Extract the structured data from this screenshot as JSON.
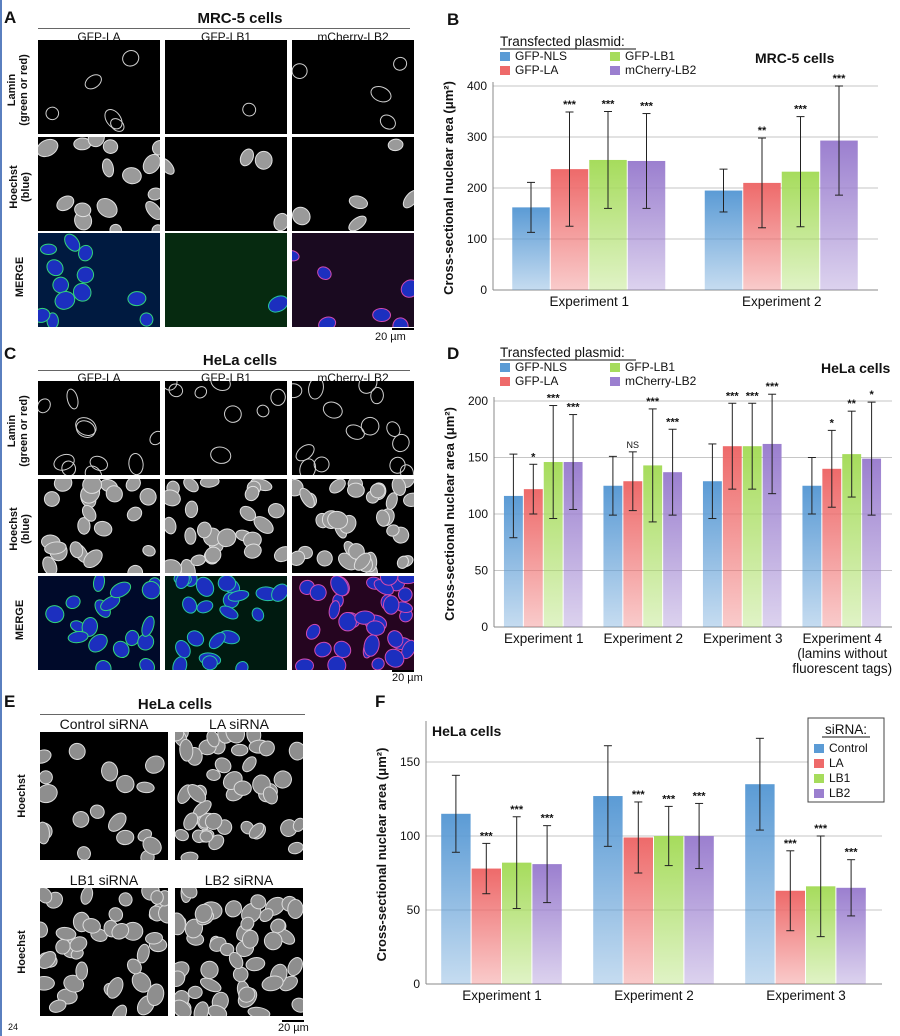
{
  "page_number": "24",
  "A": {
    "label": "A",
    "title": "MRC-5 cells",
    "columns": [
      "GFP-LA",
      "GFP-LB1",
      "mCherry-LB2"
    ],
    "rows": [
      "Lamin\n(green or red)",
      "Hoechst\n(blue)",
      "MERGE"
    ],
    "row_l1": [
      "Lamin",
      "Hoechst",
      "MERGE"
    ],
    "row_l2": [
      "(green or red)",
      "(blue)",
      ""
    ],
    "scale": "20 µm"
  },
  "C": {
    "label": "C",
    "title": "HeLa cells",
    "columns": [
      "GFP-LA",
      "GFP-LB1",
      "mCherry-LB2"
    ],
    "row_l1": [
      "Lamin",
      "Hoechst",
      "MERGE"
    ],
    "row_l2": [
      "(green or red)",
      "(blue)",
      ""
    ],
    "scale": "20 µm"
  },
  "E": {
    "label": "E",
    "title": "HeLa cells",
    "panels": [
      "Control siRNA",
      "LA siRNA",
      "LB1 siRNA",
      "LB2 siRNA"
    ],
    "row_label": "Hoechst",
    "scale": "20 µm"
  },
  "colors": {
    "blue": "#5b9bd5",
    "red": "#ee6a6a",
    "green": "#a6dc5c",
    "purple": "#9b7fcf"
  },
  "chart_data": [
    {
      "id": "B",
      "type": "bar",
      "label": "B",
      "title": "MRC-5 cells",
      "legend_title": "Transfected plasmid:",
      "ylabel": "Cross-sectional nuclear area (μm²)",
      "ylim": [
        0,
        400
      ],
      "yticks": [
        0,
        100,
        200,
        300,
        400
      ],
      "categories": [
        [
          "Experiment 1"
        ],
        [
          "Experiment 2"
        ]
      ],
      "series": [
        {
          "name": "GFP-NLS",
          "color": "#5b9bd5",
          "values": [
            162,
            195
          ],
          "err": [
            49,
            42
          ],
          "sig": [
            "",
            ""
          ]
        },
        {
          "name": "GFP-LA",
          "color": "#ee6a6a",
          "values": [
            237,
            210
          ],
          "err": [
            112,
            88
          ],
          "sig": [
            "***",
            "**"
          ]
        },
        {
          "name": "GFP-LB1",
          "color": "#a6dc5c",
          "values": [
            255,
            232
          ],
          "err": [
            95,
            108
          ],
          "sig": [
            "***",
            "***"
          ]
        },
        {
          "name": "mCherry-LB2",
          "color": "#9b7fcf",
          "values": [
            253,
            293
          ],
          "err": [
            93,
            107
          ],
          "sig": [
            "***",
            "***"
          ]
        }
      ]
    },
    {
      "id": "D",
      "type": "bar",
      "label": "D",
      "title": "HeLa cells",
      "legend_title": "Transfected plasmid:",
      "ylabel": "Cross-sectional nuclear area (μm²)",
      "ylim": [
        0,
        200
      ],
      "yticks": [
        0,
        50,
        100,
        150,
        200
      ],
      "categories": [
        [
          "Experiment 1"
        ],
        [
          "Experiment 2"
        ],
        [
          "Experiment 3"
        ],
        [
          "Experiment 4",
          "(lamins without",
          "fluorescent tags)"
        ]
      ],
      "series": [
        {
          "name": "GFP-NLS",
          "color": "#5b9bd5",
          "values": [
            116,
            125,
            129,
            125
          ],
          "err": [
            37,
            26,
            33,
            25
          ],
          "sig": [
            "",
            "",
            "",
            ""
          ]
        },
        {
          "name": "GFP-LA",
          "color": "#ee6a6a",
          "values": [
            122,
            129,
            160,
            140
          ],
          "err": [
            22,
            26,
            38,
            34
          ],
          "sig": [
            "*",
            "NS",
            "***",
            "*"
          ]
        },
        {
          "name": "GFP-LB1",
          "color": "#a6dc5c",
          "values": [
            146,
            143,
            160,
            153
          ],
          "err": [
            50,
            50,
            38,
            38
          ],
          "sig": [
            "***",
            "***",
            "***",
            "**"
          ]
        },
        {
          "name": "mCherry-LB2",
          "color": "#9b7fcf",
          "values": [
            146,
            137,
            162,
            149
          ],
          "err": [
            42,
            38,
            44,
            50
          ],
          "sig": [
            "***",
            "***",
            "***",
            "*"
          ]
        }
      ]
    },
    {
      "id": "F",
      "type": "bar",
      "label": "F",
      "title": "HeLa cells",
      "legend_title": "siRNA:",
      "ylabel": "Cross-sectional nuclear area (μm²)",
      "ylim": [
        0,
        175
      ],
      "yticks": [
        0,
        50,
        100,
        150
      ],
      "categories": [
        [
          "Experiment 1"
        ],
        [
          "Experiment 2"
        ],
        [
          "Experiment 3"
        ]
      ],
      "series": [
        {
          "name": "Control",
          "color": "#5b9bd5",
          "values": [
            115,
            127,
            135
          ],
          "err": [
            26,
            34,
            31
          ],
          "sig": [
            "",
            "",
            ""
          ]
        },
        {
          "name": "LA",
          "color": "#ee6a6a",
          "values": [
            78,
            99,
            63
          ],
          "err": [
            17,
            24,
            27
          ],
          "sig": [
            "***",
            "***",
            "***"
          ]
        },
        {
          "name": "LB1",
          "color": "#a6dc5c",
          "values": [
            82,
            100,
            66
          ],
          "err": [
            31,
            20,
            34
          ],
          "sig": [
            "***",
            "***",
            "***"
          ]
        },
        {
          "name": "LB2",
          "color": "#9b7fcf",
          "values": [
            81,
            100,
            65
          ],
          "err": [
            26,
            22,
            19
          ],
          "sig": [
            "***",
            "***",
            "***"
          ]
        }
      ]
    }
  ]
}
